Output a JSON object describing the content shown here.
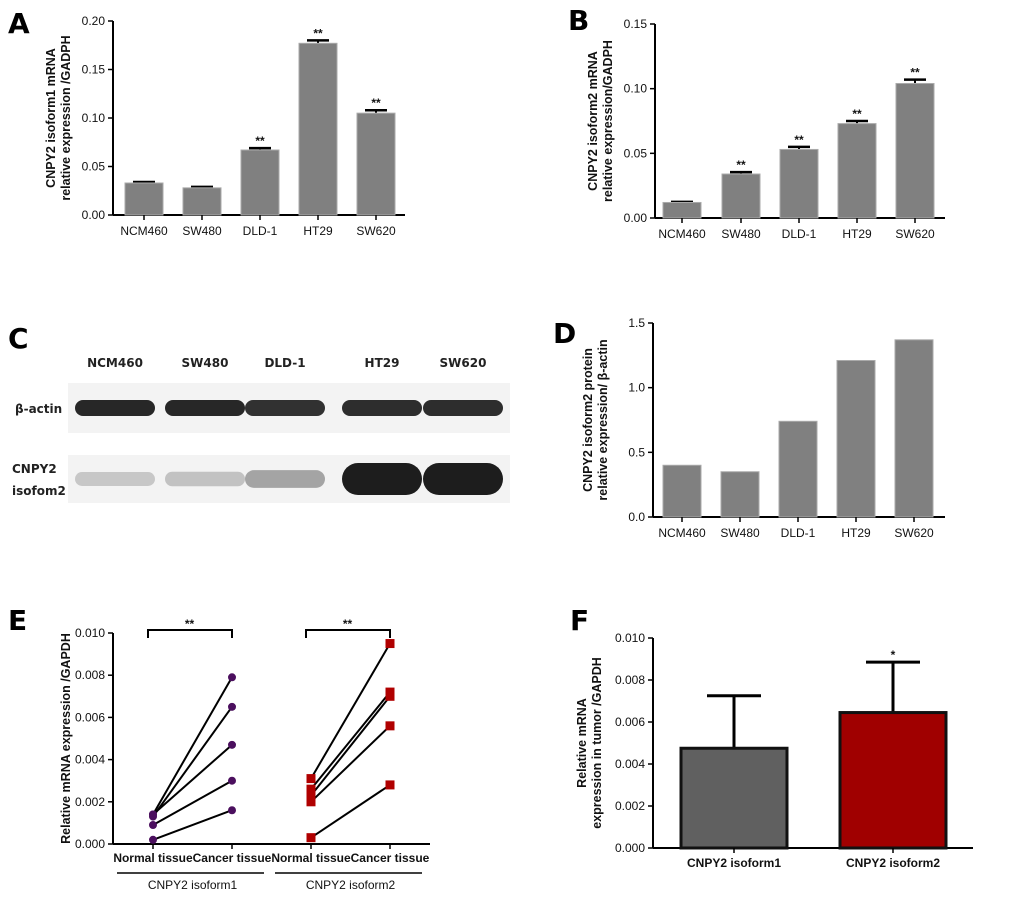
{
  "chart_data": [
    {
      "panel": "A",
      "type": "bar",
      "ylabel": [
        "CNPY2 isoform1  mRNA",
        "relative expression /GADPH"
      ],
      "categories": [
        "NCM460",
        "SW480",
        "DLD-1",
        "HT29",
        "SW620"
      ],
      "values": [
        0.033,
        0.028,
        0.067,
        0.177,
        0.105
      ],
      "errors": [
        0.001,
        0.001,
        0.002,
        0.003,
        0.003
      ],
      "significance": [
        "",
        "",
        "**",
        "**",
        "**"
      ],
      "ylim": [
        0,
        0.2
      ],
      "yticks": [
        "0.00",
        "0.05",
        "0.10",
        "0.15",
        "0.20"
      ],
      "bar_color": "#808080"
    },
    {
      "panel": "B",
      "type": "bar",
      "ylabel": [
        "CNPY2 isoform2  mRNA",
        "relative expression/GADPH"
      ],
      "categories": [
        "NCM460",
        "SW480",
        "DLD-1",
        "HT29",
        "SW620"
      ],
      "values": [
        0.012,
        0.034,
        0.053,
        0.073,
        0.104
      ],
      "errors": [
        0.0005,
        0.0015,
        0.002,
        0.002,
        0.003
      ],
      "significance": [
        "",
        "**",
        "**",
        "**",
        "**"
      ],
      "ylim": [
        0,
        0.15
      ],
      "yticks": [
        "0.00",
        "0.05",
        "0.10",
        "0.15"
      ],
      "bar_color": "#808080"
    },
    {
      "panel": "C",
      "type": "western_blot",
      "lanes": [
        "NCM460",
        "SW480",
        "DLD-1",
        "HT29",
        "SW620"
      ],
      "rows": [
        {
          "label": [
            "β-actin"
          ],
          "intensity": [
            0.95,
            0.95,
            0.9,
            0.92,
            0.92
          ]
        },
        {
          "label": [
            "CNPY2",
            "isofom2"
          ],
          "intensity": [
            0.18,
            0.2,
            0.35,
            1.0,
            1.0
          ]
        }
      ]
    },
    {
      "panel": "D",
      "type": "bar",
      "ylabel": [
        "CNPY2 isoform2  protein",
        "relative expression/ β-actin"
      ],
      "categories": [
        "NCM460",
        "SW480",
        "DLD-1",
        "HT29",
        "SW620"
      ],
      "values": [
        0.4,
        0.35,
        0.74,
        1.21,
        1.37
      ],
      "ylim": [
        0,
        1.5
      ],
      "yticks": [
        "0.0",
        "0.5",
        "1.0",
        "1.5"
      ],
      "bar_color": "#808080"
    },
    {
      "panel": "E",
      "type": "scatter",
      "ylabel": [
        "Relative  mRNA expression /GAPDH"
      ],
      "ylim": [
        0,
        0.01
      ],
      "yticks": [
        "0.000",
        "0.002",
        "0.004",
        "0.006",
        "0.008",
        "0.010"
      ],
      "xtick_labels": [
        "Normal tissue",
        "Cancer tissue",
        "Normal tissue",
        "Cancer tissue"
      ],
      "groups": [
        {
          "name": "CNPY2 isoform1",
          "marker": "circle",
          "color": "#4b0f5e",
          "significance": "**",
          "normal": [
            0.0014,
            0.0013,
            0.0014,
            0.0009,
            0.0002
          ],
          "cancer": [
            0.0079,
            0.0065,
            0.0047,
            0.003,
            0.0016
          ]
        },
        {
          "name": "CNPY2 isoform2",
          "marker": "square",
          "color": "#b00000",
          "significance": "**",
          "normal": [
            0.0031,
            0.0026,
            0.0023,
            0.002,
            0.0003
          ],
          "cancer": [
            0.0095,
            0.0072,
            0.007,
            0.0056,
            0.0028
          ]
        }
      ]
    },
    {
      "panel": "F",
      "type": "bar",
      "ylabel": [
        "Relative  mRNA",
        "expression in tumor /GAPDH"
      ],
      "categories": [
        "CNPY2 isoform1",
        "CNPY2 isoform2"
      ],
      "values": [
        0.00475,
        0.00645
      ],
      "errors": [
        0.0025,
        0.0024
      ],
      "significance": [
        "",
        "*"
      ],
      "ylim": [
        0,
        0.01
      ],
      "yticks": [
        "0.000",
        "0.002",
        "0.004",
        "0.006",
        "0.008",
        "0.010"
      ],
      "bar_colors": [
        "#606060",
        "#a00000"
      ]
    }
  ]
}
